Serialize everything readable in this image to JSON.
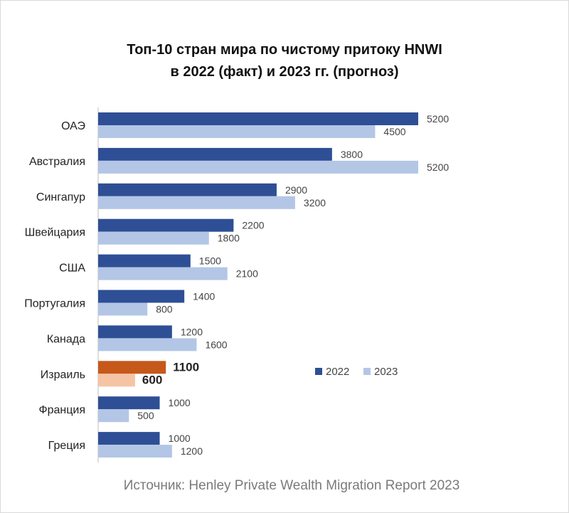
{
  "title": {
    "line1": "Топ-10 стран мира по чистому притоку HNWI",
    "line2": "в 2022 (факт) и 2023 гг. (прогноз)"
  },
  "source": "Источник: Henley Private Wealth Migration Report 2023",
  "colors": {
    "series_2022": "#2e4f95",
    "series_2023": "#b3c6e6",
    "highlight_2022": "#c6581a",
    "highlight_2023": "#f5c4a4",
    "axis": "#bdbdbd"
  },
  "chart_data": {
    "type": "bar",
    "orientation": "horizontal",
    "categories": [
      "ОАЭ",
      "Австралия",
      "Сингапур",
      "Швейцария",
      "США",
      "Португалия",
      "Канада",
      "Израиль",
      "Франция",
      "Греция"
    ],
    "series": [
      {
        "name": "2022",
        "values": [
          5200,
          3800,
          2900,
          2200,
          1500,
          1400,
          1200,
          1100,
          1000,
          1000
        ]
      },
      {
        "name": "2023",
        "values": [
          4500,
          5200,
          3200,
          1800,
          2100,
          800,
          1600,
          600,
          500,
          1200
        ]
      }
    ],
    "highlight_category": "Израиль",
    "xlim": [
      0,
      5200
    ],
    "grid": false,
    "legend_position": "right"
  }
}
